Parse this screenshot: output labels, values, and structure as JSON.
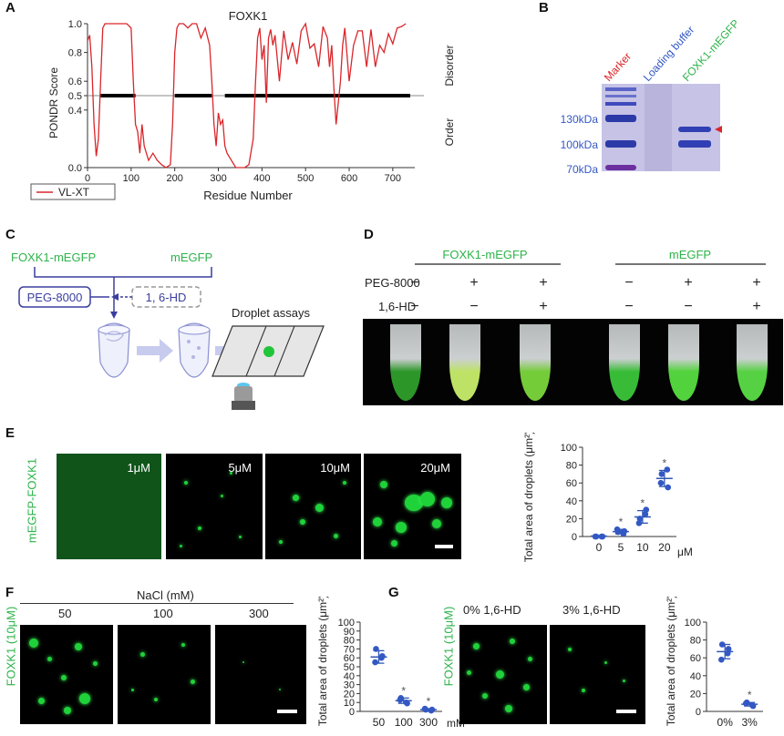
{
  "panels": {
    "A": "A",
    "B": "B",
    "C": "C",
    "D": "D",
    "E": "E",
    "F": "F",
    "G": "G"
  },
  "colors": {
    "green": "#2db34a",
    "blue": "#3358c4",
    "red": "#d9262b",
    "dot_blue": "#2f56b3"
  },
  "panelA": {
    "title": "FOXK1",
    "ylabel": "PONDR Score",
    "xlabel": "Residue Number",
    "legend": "VL-XT",
    "right_top": "Disorder",
    "right_bottom": "Order",
    "chart_data": {
      "type": "line",
      "title": "FOXK1",
      "xlabel": "Residue Number",
      "ylabel": "PONDR Score",
      "xlim": [
        0,
        740
      ],
      "ylim": [
        0,
        1
      ],
      "x_ticks": [
        "0",
        "100",
        "200",
        "300",
        "400",
        "500",
        "600",
        "700"
      ],
      "y_ticks": [
        "0.0",
        "0.4",
        "0.5",
        "0.6",
        "0.8",
        "1.0"
      ],
      "threshold": 0.5,
      "disorder_bar": [
        [
          30,
          110
        ],
        [
          200,
          285
        ],
        [
          315,
          740
        ]
      ],
      "series": [
        {
          "name": "VL-XT",
          "x": [
            0,
            5,
            10,
            15,
            20,
            25,
            30,
            35,
            40,
            50,
            60,
            70,
            80,
            90,
            100,
            105,
            110,
            115,
            120,
            125,
            130,
            140,
            150,
            160,
            170,
            180,
            190,
            195,
            200,
            205,
            210,
            220,
            230,
            240,
            250,
            260,
            270,
            280,
            285,
            290,
            295,
            300,
            305,
            310,
            315,
            320,
            330,
            340,
            350,
            360,
            370,
            380,
            385,
            390,
            395,
            400,
            405,
            410,
            415,
            420,
            425,
            430,
            440,
            450,
            460,
            470,
            480,
            490,
            500,
            510,
            520,
            530,
            540,
            550,
            555,
            560,
            565,
            570,
            575,
            580,
            585,
            590,
            600,
            610,
            620,
            630,
            640,
            650,
            660,
            670,
            680,
            690,
            700,
            710,
            720,
            730
          ],
          "y": [
            0.88,
            0.92,
            0.7,
            0.3,
            0.08,
            0.2,
            0.6,
            0.97,
            1.0,
            1.0,
            1.0,
            1.0,
            1.0,
            1.0,
            0.97,
            0.6,
            0.3,
            0.25,
            0.1,
            0.3,
            0.15,
            0.05,
            0.1,
            0.05,
            0.02,
            0.0,
            0.02,
            0.3,
            0.8,
            0.97,
            1.0,
            1.0,
            0.97,
            1.0,
            1.0,
            0.9,
            0.97,
            0.85,
            0.6,
            0.3,
            0.15,
            0.38,
            0.3,
            0.33,
            0.15,
            0.1,
            0.05,
            0.0,
            0.0,
            0.0,
            0.02,
            0.2,
            0.58,
            0.9,
            0.97,
            0.75,
            0.85,
            0.45,
            0.9,
            0.96,
            0.85,
            0.92,
            0.6,
            0.95,
            0.75,
            0.87,
            0.72,
            0.95,
            1.0,
            0.83,
            0.86,
            0.7,
            0.98,
            0.9,
            0.7,
            0.85,
            0.55,
            0.3,
            0.45,
            0.6,
            0.85,
            0.97,
            0.6,
            0.85,
            0.95,
            0.95,
            0.7,
            0.96,
            0.7,
            0.85,
            0.8,
            0.93,
            0.86,
            0.97,
            0.98,
            1.0
          ]
        }
      ]
    }
  },
  "panelB": {
    "lanes": [
      "Marker",
      "Loading buffer",
      "FOXK1-mEGFP"
    ],
    "markers": [
      "130kDa",
      "100kDa",
      "70kDa"
    ]
  },
  "panelC": {
    "top_left": "FOXK1-mEGFP",
    "top_right": "mEGFP",
    "box1": "PEG-8000",
    "box2": "1, 6-HD",
    "assay": "Droplet assays"
  },
  "panelD": {
    "group1": "FOXK1-mEGFP",
    "group2": "mEGFP",
    "row1_label": "PEG-8000",
    "row2_label": "1,6-HD",
    "row1": [
      "−",
      "+",
      "+",
      "−",
      "+",
      "+"
    ],
    "row2": [
      "−",
      "−",
      "+",
      "−",
      "−",
      "+"
    ]
  },
  "panelE": {
    "side_label": "mEGFP-FOXK1",
    "images": [
      "1μM",
      "5μM",
      "10μM",
      "20μM"
    ],
    "chart_data": {
      "type": "scatter",
      "ylabel": "Total area of droplets (μm²)",
      "ylim": [
        0,
        100
      ],
      "y_ticks": [
        "0",
        "20",
        "40",
        "60",
        "80",
        "100"
      ],
      "categories": [
        "0",
        "5",
        "10",
        "20"
      ],
      "unit": "μM",
      "points": [
        [
          0,
          0,
          0,
          0
        ],
        [
          5,
          3,
          8,
          6
        ],
        [
          20,
          25,
          15,
          30
        ],
        [
          70,
          75,
          60,
          55
        ]
      ],
      "means": [
        0.5,
        5.5,
        22,
        65
      ],
      "sd": [
        0.5,
        2.5,
        7,
        9
      ],
      "significant": [
        false,
        true,
        true,
        true
      ]
    }
  },
  "panelF": {
    "side_label": "FOXK1 (10μM)",
    "header": "NaCl (mM)",
    "images": [
      "50",
      "100",
      "300"
    ],
    "chart_data": {
      "type": "scatter",
      "ylabel": "Total area of droplets (μm²)",
      "ylim": [
        0,
        100
      ],
      "y_ticks": [
        "0",
        "10",
        "20",
        "30",
        "40",
        "50",
        "60",
        "70",
        "80",
        "90",
        "100"
      ],
      "categories": [
        "50",
        "100",
        "300"
      ],
      "unit": "mM",
      "points": [
        [
          70,
          60,
          55,
          62
        ],
        [
          15,
          10,
          13,
          9
        ],
        [
          2,
          1,
          3,
          2
        ]
      ],
      "means": [
        61,
        12,
        2
      ],
      "sd": [
        7,
        3,
        1
      ],
      "significant": [
        false,
        true,
        true
      ]
    }
  },
  "panelG": {
    "side_label": "FOXK1 (10μM)",
    "images": [
      "0% 1,6-HD",
      "3% 1,6-HD"
    ],
    "chart_data": {
      "type": "scatter",
      "ylabel": "Total area of droplets (μm²)",
      "ylim": [
        0,
        100
      ],
      "y_ticks": [
        "0",
        "20",
        "40",
        "60",
        "80",
        "100"
      ],
      "categories": [
        "0%",
        "3%"
      ],
      "points": [
        [
          75,
          65,
          58,
          70
        ],
        [
          10,
          7,
          9,
          6
        ]
      ],
      "means": [
        67,
        8
      ],
      "sd": [
        8,
        2
      ],
      "significant": [
        false,
        true
      ]
    }
  }
}
